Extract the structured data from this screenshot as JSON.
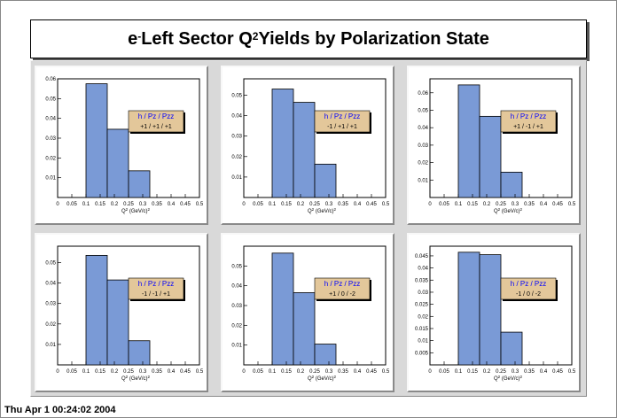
{
  "title": {
    "prefix": "e",
    "prefix_sup": "-",
    "middle": " Left Sector Q",
    "middle_sup": "2",
    "suffix": " Yields by Polarization State"
  },
  "timestamp": "Thu Apr  1 00:24:02 2004",
  "colors": {
    "bar_fill": "#7a9ad6",
    "legend_fill": "#e3c79a",
    "pad_bg": "#d9d9d9"
  },
  "chart_data": [
    {
      "type": "bar",
      "xlabel": "Q",
      "xlabel_sup": "2",
      "xlabel_units": " (GeV/c)",
      "xlabel_units_sup": "2",
      "xlim": [
        0,
        0.5
      ],
      "xticks": [
        "0",
        "0.05",
        "0.1",
        "0.15",
        "0.2",
        "0.25",
        "0.3",
        "0.35",
        "0.4",
        "0.45",
        "0.5"
      ],
      "ylim": [
        0,
        0.06
      ],
      "yticks": [
        "0.01",
        "0.02",
        "0.03",
        "0.04",
        "0.05",
        "0.06"
      ],
      "bin_edges": [
        0.1,
        0.175,
        0.25,
        0.325
      ],
      "values": [
        0.0575,
        0.0345,
        0.0135
      ],
      "legend_header": "h / Pz / Pzz",
      "legend_value": "+1 / +1 / +1"
    },
    {
      "type": "bar",
      "xlabel": "Q",
      "xlabel_sup": "2",
      "xlabel_units": " (GeV/c)",
      "xlabel_units_sup": "2",
      "xlim": [
        0,
        0.5
      ],
      "xticks": [
        "0",
        "0.05",
        "0.1",
        "0.15",
        "0.2",
        "0.25",
        "0.3",
        "0.35",
        "0.4",
        "0.45",
        "0.5"
      ],
      "ylim": [
        0,
        0.058
      ],
      "yticks": [
        "0.01",
        "0.02",
        "0.03",
        "0.04",
        "0.05"
      ],
      "bin_edges": [
        0.1,
        0.175,
        0.25,
        0.325
      ],
      "values": [
        0.053,
        0.0465,
        0.0163
      ],
      "legend_header": "h / Pz / Pzz",
      "legend_value": "-1 / +1 / +1"
    },
    {
      "type": "bar",
      "xlabel": "Q",
      "xlabel_sup": "2",
      "xlabel_units": " (GeV/c)",
      "xlabel_units_sup": "2",
      "xlim": [
        0,
        0.5
      ],
      "xticks": [
        "0",
        "0.05",
        "0.1",
        "0.15",
        "0.2",
        "0.25",
        "0.3",
        "0.35",
        "0.4",
        "0.45",
        "0.5"
      ],
      "ylim": [
        0,
        0.068
      ],
      "yticks": [
        "0.01",
        "0.02",
        "0.03",
        "0.04",
        "0.05",
        "0.06"
      ],
      "bin_edges": [
        0.1,
        0.175,
        0.25,
        0.325
      ],
      "values": [
        0.0645,
        0.0465,
        0.0145
      ],
      "legend_header": "h / Pz / Pzz",
      "legend_value": "+1 / -1 / +1"
    },
    {
      "type": "bar",
      "xlabel": "Q",
      "xlabel_sup": "2",
      "xlabel_units": " (GeV/c)",
      "xlabel_units_sup": "2",
      "xlim": [
        0,
        0.5
      ],
      "xticks": [
        "0",
        "0.05",
        "0.1",
        "0.15",
        "0.2",
        "0.25",
        "0.3",
        "0.35",
        "0.4",
        "0.45",
        "0.5"
      ],
      "ylim": [
        0,
        0.058
      ],
      "yticks": [
        "0.01",
        "0.02",
        "0.03",
        "0.04",
        "0.05"
      ],
      "bin_edges": [
        0.1,
        0.175,
        0.25,
        0.325
      ],
      "values": [
        0.0535,
        0.0415,
        0.0118
      ],
      "legend_header": "h / Pz / Pzz",
      "legend_value": "-1 / -1 / +1"
    },
    {
      "type": "bar",
      "xlabel": "Q",
      "xlabel_sup": "2",
      "xlabel_units": " (GeV/c)",
      "xlabel_units_sup": "2",
      "xlim": [
        0,
        0.5
      ],
      "xticks": [
        "0",
        "0.05",
        "0.1",
        "0.15",
        "0.2",
        "0.25",
        "0.3",
        "0.35",
        "0.4",
        "0.45",
        "0.5"
      ],
      "ylim": [
        0,
        0.06
      ],
      "yticks": [
        "0.01",
        "0.02",
        "0.03",
        "0.04",
        "0.05"
      ],
      "bin_edges": [
        0.1,
        0.175,
        0.25,
        0.325
      ],
      "values": [
        0.0565,
        0.0365,
        0.0105
      ],
      "legend_header": "h / Pz / Pzz",
      "legend_value": "+1 / 0 / -2"
    },
    {
      "type": "bar",
      "xlabel": "Q",
      "xlabel_sup": "2",
      "xlabel_units": " (GeV/c)",
      "xlabel_units_sup": "2",
      "xlim": [
        0,
        0.5
      ],
      "xticks": [
        "0",
        "0.05",
        "0.1",
        "0.15",
        "0.2",
        "0.25",
        "0.3",
        "0.35",
        "0.4",
        "0.45",
        "0.5"
      ],
      "ylim": [
        0,
        0.049
      ],
      "yticks": [
        "0.005",
        "0.01",
        "0.015",
        "0.02",
        "0.025",
        "0.03",
        "0.035",
        "0.04",
        "0.045"
      ],
      "bin_edges": [
        0.1,
        0.175,
        0.25,
        0.325
      ],
      "values": [
        0.0465,
        0.0455,
        0.0135
      ],
      "legend_header": "h / Pz / Pzz",
      "legend_value": "-1 / 0 / -2"
    }
  ]
}
